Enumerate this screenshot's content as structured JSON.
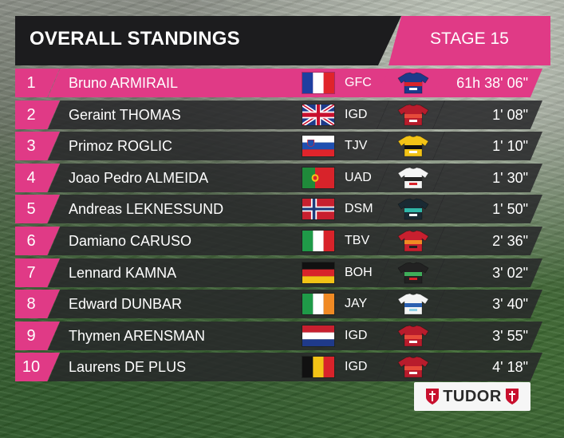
{
  "header": {
    "title": "OVERALL STANDINGS",
    "stage": "STAGE 15"
  },
  "standings": [
    {
      "pos": "1",
      "name": "Bruno ARMIRAIL",
      "flag": "flag-france-icon",
      "code": "GFC",
      "jersey": "jersey-groupama-fdj-icon",
      "time": "61h 38' 06\""
    },
    {
      "pos": "2",
      "name": "Geraint THOMAS",
      "flag": "flag-great-britain-icon",
      "code": "IGD",
      "jersey": "jersey-ineos-icon",
      "time": "1' 08\""
    },
    {
      "pos": "3",
      "name": "Primoz ROGLIC",
      "flag": "flag-slovenia-icon",
      "code": "TJV",
      "jersey": "jersey-jumbo-visma-icon",
      "time": "1' 10\""
    },
    {
      "pos": "4",
      "name": "Joao Pedro ALMEIDA",
      "flag": "flag-portugal-icon",
      "code": "UAD",
      "jersey": "jersey-uae-icon",
      "time": "1' 30\""
    },
    {
      "pos": "5",
      "name": "Andreas LEKNESSUND",
      "flag": "flag-norway-icon",
      "code": "DSM",
      "jersey": "jersey-dsm-icon",
      "time": "1' 50\""
    },
    {
      "pos": "6",
      "name": "Damiano CARUSO",
      "flag": "flag-italy-icon",
      "code": "TBV",
      "jersey": "jersey-bahrain-icon",
      "time": "2' 36\""
    },
    {
      "pos": "7",
      "name": "Lennard KAMNA",
      "flag": "flag-germany-icon",
      "code": "BOH",
      "jersey": "jersey-bora-icon",
      "time": "3' 02\""
    },
    {
      "pos": "8",
      "name": "Edward DUNBAR",
      "flag": "flag-ireland-icon",
      "code": "JAY",
      "jersey": "jersey-jayco-icon",
      "time": "3' 40\""
    },
    {
      "pos": "9",
      "name": "Thymen ARENSMAN",
      "flag": "flag-netherlands-icon",
      "code": "IGD",
      "jersey": "jersey-ineos-icon",
      "time": "3' 55\""
    },
    {
      "pos": "10",
      "name": "Laurens DE PLUS",
      "flag": "flag-belgium-icon",
      "code": "IGD",
      "jersey": "jersey-ineos-icon",
      "time": "4' 18\""
    }
  ],
  "sponsor": {
    "name": "TUDOR",
    "icon": "tudor-shield-icon"
  },
  "colors": {
    "accent": "#e03a86",
    "panel": "#1c1c1e",
    "row": "#28282a"
  }
}
